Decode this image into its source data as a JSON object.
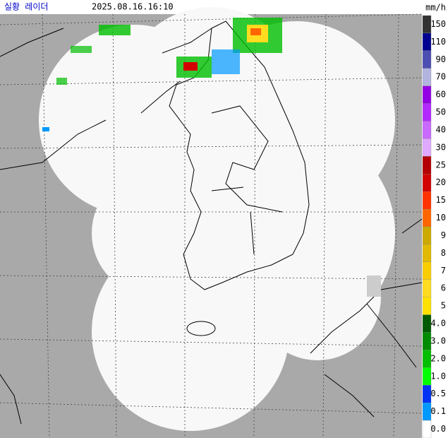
{
  "header": {
    "title": "실황 레이더",
    "time": "2025.08.16.16:10",
    "unit": "mm/h"
  },
  "legend": {
    "items": [
      {
        "label": "150",
        "color": "#333333"
      },
      {
        "label": "110",
        "color": "#000390"
      },
      {
        "label": "90",
        "color": "#4c4eb1"
      },
      {
        "label": "70",
        "color": "#b3b4de"
      },
      {
        "label": "60",
        "color": "#9300e4"
      },
      {
        "label": "50",
        "color": "#b329ff"
      },
      {
        "label": "40",
        "color": "#c969ff"
      },
      {
        "label": "30",
        "color": "#dfa9ff"
      },
      {
        "label": "25",
        "color": "#b40000"
      },
      {
        "label": "20",
        "color": "#d20000"
      },
      {
        "label": "15",
        "color": "#ff3200"
      },
      {
        "label": "10",
        "color": "#ff6600"
      },
      {
        "label": "9",
        "color": "#ccaa00"
      },
      {
        "label": "8",
        "color": "#e0b900"
      },
      {
        "label": "7",
        "color": "#f9cd00"
      },
      {
        "label": "6",
        "color": "#ffdc1f"
      },
      {
        "label": "5",
        "color": "#ffe100"
      },
      {
        "label": "4.0",
        "color": "#005a00"
      },
      {
        "label": "3.0",
        "color": "#008c00"
      },
      {
        "label": "2.0",
        "color": "#00be00"
      },
      {
        "label": "1.0",
        "color": "#00ff00"
      },
      {
        "label": "0.5",
        "color": "#0033f5"
      },
      {
        "label": "0.1",
        "color": "#0099ff"
      },
      {
        "label": "0.0",
        "color": "#ffffff"
      }
    ]
  }
}
